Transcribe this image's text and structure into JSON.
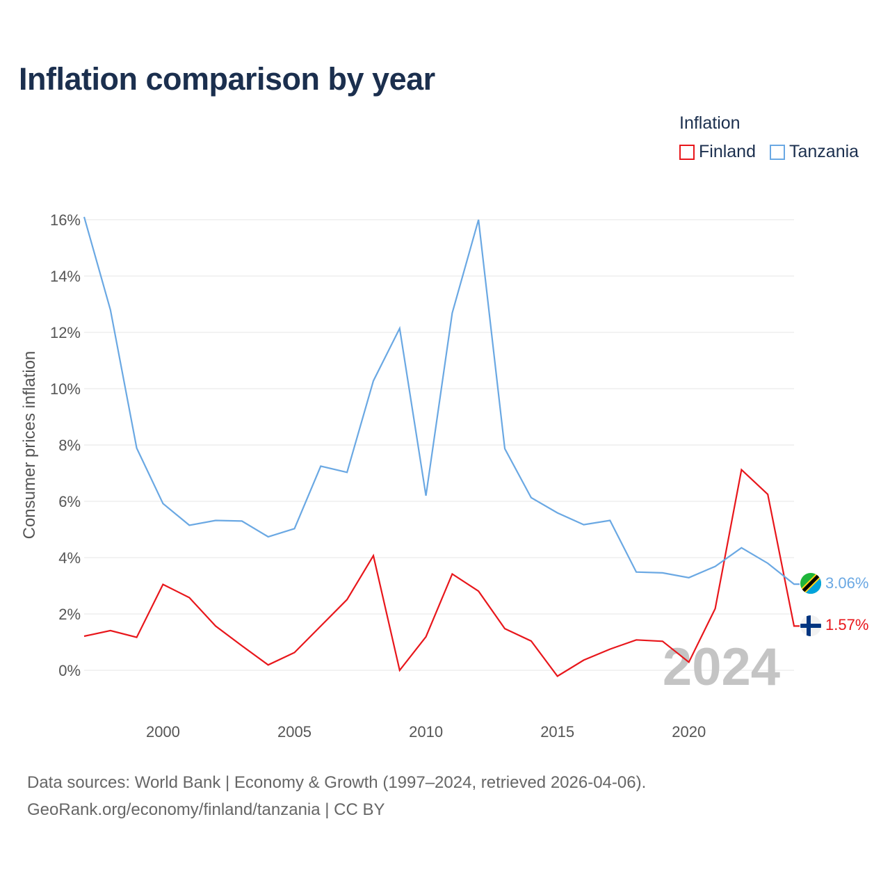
{
  "title": "Inflation comparison by year",
  "legend": {
    "title": "Inflation",
    "items": [
      {
        "label": "Finland",
        "color": "#e8161b"
      },
      {
        "label": "Tanzania",
        "color": "#6aa8e3"
      }
    ]
  },
  "footer": {
    "line1": "Data sources: World Bank | Economy & Growth (1997–2024, retrieved 2026-04-06).",
    "line2": "GeoRank.org/economy/finland/tanzania | CC BY"
  },
  "chart_data": {
    "type": "line",
    "title": "Inflation comparison by year",
    "xlabel": "",
    "ylabel": "Consumer prices inflation",
    "x": [
      1997,
      1998,
      1999,
      2000,
      2001,
      2002,
      2003,
      2004,
      2005,
      2006,
      2007,
      2008,
      2009,
      2010,
      2011,
      2012,
      2013,
      2014,
      2015,
      2016,
      2017,
      2018,
      2019,
      2020,
      2021,
      2022,
      2023,
      2024
    ],
    "xlim": [
      1997,
      2024
    ],
    "ylim": [
      -1,
      16
    ],
    "xticks": [
      "2000",
      "2005",
      "2010",
      "2015",
      "2020"
    ],
    "yticks": [
      "0%",
      "2%",
      "4%",
      "6%",
      "8%",
      "10%",
      "12%",
      "14%",
      "16%"
    ],
    "grid": true,
    "current_year_label": "2024",
    "series": [
      {
        "name": "Finland",
        "color": "#e8161b",
        "values": [
          1.21,
          1.41,
          1.17,
          3.05,
          2.58,
          1.57,
          0.87,
          0.19,
          0.63,
          1.57,
          2.51,
          4.07,
          0.0,
          1.19,
          3.42,
          2.81,
          1.48,
          1.04,
          -0.21,
          0.36,
          0.75,
          1.08,
          1.03,
          0.29,
          2.19,
          7.12,
          6.25,
          1.57
        ],
        "end_label": "1.57%"
      },
      {
        "name": "Tanzania",
        "color": "#6aa8e3",
        "values": [
          16.1,
          12.8,
          7.89,
          5.92,
          5.15,
          5.32,
          5.3,
          4.74,
          5.03,
          7.25,
          7.03,
          10.28,
          12.14,
          6.2,
          12.69,
          16.0,
          7.87,
          6.13,
          5.59,
          5.17,
          5.32,
          3.49,
          3.46,
          3.29,
          3.69,
          4.35,
          3.8,
          3.06
        ],
        "end_label": "3.06%"
      }
    ]
  }
}
